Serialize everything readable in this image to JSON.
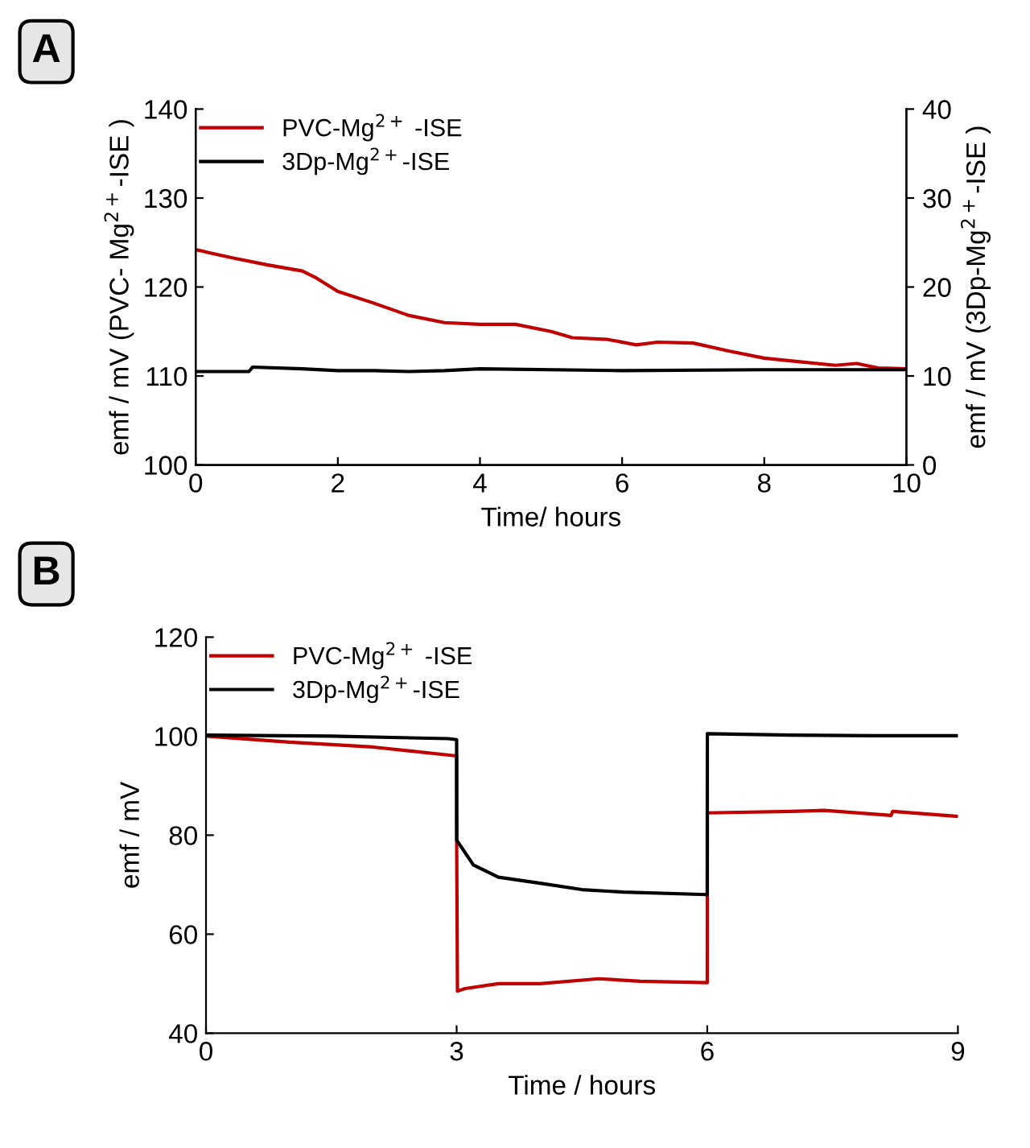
{
  "chart_data": [
    {
      "type": "line",
      "xlabel": "Time/ hours",
      "ylabel": "emf / mV (PVC- Mg$^{2+}$-ISE )",
      "y2label": "emf / mV (3Dp-Mg$^{2+}$-ISE )",
      "annotations": [
        "A"
      ],
      "xlim": [
        0,
        10
      ],
      "xticks": [
        0,
        2,
        4,
        6,
        8,
        10
      ],
      "ylim": [
        100,
        140
      ],
      "yticks": [
        100,
        110,
        120,
        130,
        140
      ],
      "y2lim": [
        0,
        40
      ],
      "y2ticks": [
        0,
        10,
        20,
        30,
        40
      ],
      "grid": false,
      "legend": "top left",
      "marker": "none",
      "line_style": "solid",
      "series": [
        {
          "name": "PVC-Mg$^{2+}$ -ISE",
          "color": "#c00000",
          "x": [
            0,
            0.5,
            1,
            1.5,
            1.7,
            2,
            2.5,
            3,
            3.5,
            4,
            4.5,
            5,
            5.3,
            5.8,
            6.2,
            6.5,
            7,
            7.5,
            8,
            8.5,
            9,
            9.3,
            9.6,
            10
          ],
          "values": [
            124.2,
            123.3,
            122.5,
            121.8,
            121,
            119.5,
            118.2,
            116.8,
            116,
            115.8,
            115.8,
            115,
            114.3,
            114.1,
            113.5,
            113.8,
            113.7,
            112.8,
            112,
            111.6,
            111.2,
            111.4,
            110.9,
            110.8
          ]
        },
        {
          "name": "3Dp-Mg$^{2+}$-ISE",
          "color": "#000000",
          "axis": "y2",
          "x": [
            0,
            0.75,
            0.8,
            1.5,
            2,
            2.5,
            3,
            3.5,
            4,
            6,
            8,
            10
          ],
          "values": [
            10.5,
            10.5,
            11,
            10.8,
            10.6,
            10.6,
            10.5,
            10.6,
            10.8,
            10.6,
            10.7,
            10.7
          ]
        }
      ]
    },
    {
      "type": "line",
      "xlabel": "Time / hours",
      "ylabel": "emf / mV",
      "annotations": [
        "B"
      ],
      "xlim": [
        0,
        9
      ],
      "xticks": [
        0,
        3,
        6,
        9
      ],
      "ylim": [
        40,
        120
      ],
      "yticks": [
        40,
        60,
        80,
        100,
        120
      ],
      "grid": false,
      "legend": "top left",
      "marker": "none",
      "line_style": "solid",
      "series": [
        {
          "name": "PVC-Mg$^{2+}$ -ISE",
          "color": "#c00000",
          "x": [
            0,
            1,
            2,
            3,
            3.001,
            3.01,
            3.1,
            3.5,
            4,
            4.7,
            5.2,
            6,
            6.001,
            7,
            7.4,
            8.2,
            8.22,
            9
          ],
          "values": [
            100,
            98.8,
            97.8,
            96,
            77,
            48.5,
            49,
            50,
            50,
            51,
            50.5,
            50.2,
            84.5,
            84.8,
            85,
            84,
            84.8,
            83.8
          ]
        },
        {
          "name": "3Dp-Mg$^{2+}$-ISE",
          "color": "#000000",
          "x": [
            0,
            1.5,
            2.9,
            3,
            3.001,
            3.2,
            3.5,
            4,
            4.5,
            5,
            6,
            6.001,
            7,
            8,
            9
          ],
          "values": [
            100.2,
            100,
            99.5,
            99.3,
            79,
            74,
            71.5,
            70.3,
            69,
            68.5,
            68,
            100.5,
            100.2,
            100.1,
            100.1
          ]
        }
      ]
    }
  ]
}
